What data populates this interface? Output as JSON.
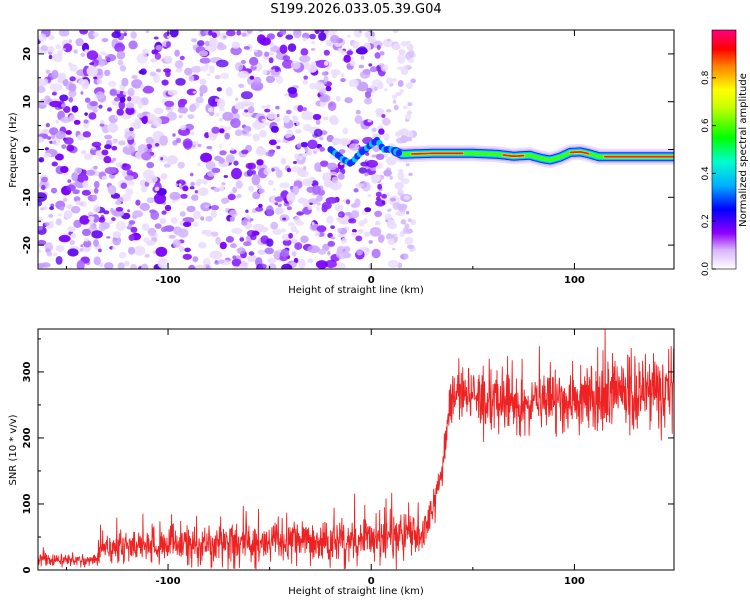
{
  "title": "S199.2026.033.05.39.G04",
  "chart_data": [
    {
      "type": "heatmap",
      "title": "S199.2026.033.05.39.G04",
      "xlabel": "Height of straight line (km)",
      "ylabel": "Frequency (Hz)",
      "xlim": [
        -164,
        149
      ],
      "ylim": [
        -25,
        25
      ],
      "xticks": [
        -100,
        0,
        100
      ],
      "yticks": [
        -20,
        -10,
        0,
        10,
        20
      ],
      "xtick_labels": [
        "-100",
        "0",
        "100"
      ],
      "ytick_labels": [
        "-20",
        "-10",
        "0",
        "10",
        "20"
      ],
      "noise_region_x": [
        -164,
        15
      ],
      "signal_track": {
        "x": [
          -20,
          -14,
          -10,
          -6,
          -3,
          0,
          3,
          6,
          10,
          15,
          30,
          50,
          62,
          70,
          78,
          83,
          88,
          93,
          98,
          103,
          108,
          112,
          125,
          149
        ],
        "y": [
          0,
          -2,
          -3,
          -1,
          0,
          1,
          2,
          0,
          0,
          -1,
          -0.8,
          -0.8,
          -1,
          -1.4,
          -1.2,
          -1.8,
          -2.2,
          -1.6,
          -0.6,
          -0.5,
          -1.0,
          -1.5,
          -1.5,
          -1.5
        ],
        "peak_intervals_x": [
          [
            20,
            45
          ],
          [
            65,
            75
          ],
          [
            98,
            107
          ],
          [
            115,
            149
          ]
        ]
      },
      "colorbar": {
        "label": "Normalized spectral amplitude",
        "range": [
          0,
          1
        ],
        "ticks": [
          0.0,
          0.2,
          0.4,
          0.6,
          0.8
        ],
        "tick_labels": [
          "0.0",
          "0.2",
          "0.4",
          "0.6",
          "0.8"
        ],
        "colors": [
          "#ffffff",
          "#8f00ff",
          "#0000ff",
          "#00ffff",
          "#00ff00",
          "#ffff00",
          "#ff0000",
          "#ff0080"
        ]
      }
    },
    {
      "type": "line",
      "xlabel": "Height of straight line (km)",
      "ylabel": "SNR (10 * v/v)",
      "xlim": [
        -164,
        149
      ],
      "ylim": [
        0,
        365
      ],
      "xticks": [
        -100,
        0,
        100
      ],
      "yticks": [
        0,
        100,
        200,
        300
      ],
      "xtick_labels": [
        "-100",
        "0",
        "100"
      ],
      "ytick_labels": [
        "0",
        "100",
        "200",
        "300"
      ],
      "series": [
        {
          "name": "SNR",
          "color": "#ee2222",
          "x": [
            -164,
            -135,
            -134,
            -100,
            -60,
            -20,
            10,
            25,
            30,
            35,
            38,
            42,
            44,
            60,
            80,
            100,
            120,
            149
          ],
          "y": [
            15,
            15,
            35,
            38,
            40,
            42,
            50,
            55,
            80,
            160,
            230,
            265,
            255,
            255,
            255,
            255,
            265,
            270
          ],
          "noise_spread": [
            8,
            8,
            22,
            25,
            28,
            28,
            30,
            30,
            25,
            25,
            30,
            40,
            45,
            45,
            45,
            45,
            50,
            50
          ]
        }
      ]
    }
  ]
}
